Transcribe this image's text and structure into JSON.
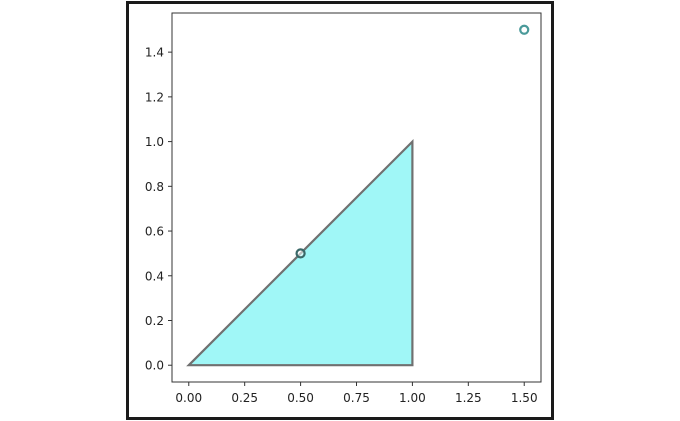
{
  "chart_data": {
    "type": "scatter",
    "title": "",
    "xlabel": "",
    "ylabel": "",
    "xlim": [
      -0.075,
      1.575
    ],
    "ylim": [
      -0.075,
      1.575
    ],
    "grid": false,
    "x_ticks": [
      "0.00",
      "0.25",
      "0.50",
      "0.75",
      "1.00",
      "1.25",
      "1.50"
    ],
    "y_ticks": [
      "0.0",
      "0.2",
      "0.4",
      "0.6",
      "0.8",
      "1.0",
      "1.2",
      "1.4"
    ],
    "polygon": {
      "vertices": [
        [
          0,
          0
        ],
        [
          1,
          1
        ],
        [
          1,
          0
        ]
      ],
      "fill_color": "#a0f7f7",
      "edge_color": "#707070"
    },
    "points": [
      {
        "x": 0.5,
        "y": 0.5,
        "edge_color": "#3a6868"
      },
      {
        "x": 1.5,
        "y": 1.5,
        "edge_color": "#4a9a9a"
      }
    ]
  }
}
